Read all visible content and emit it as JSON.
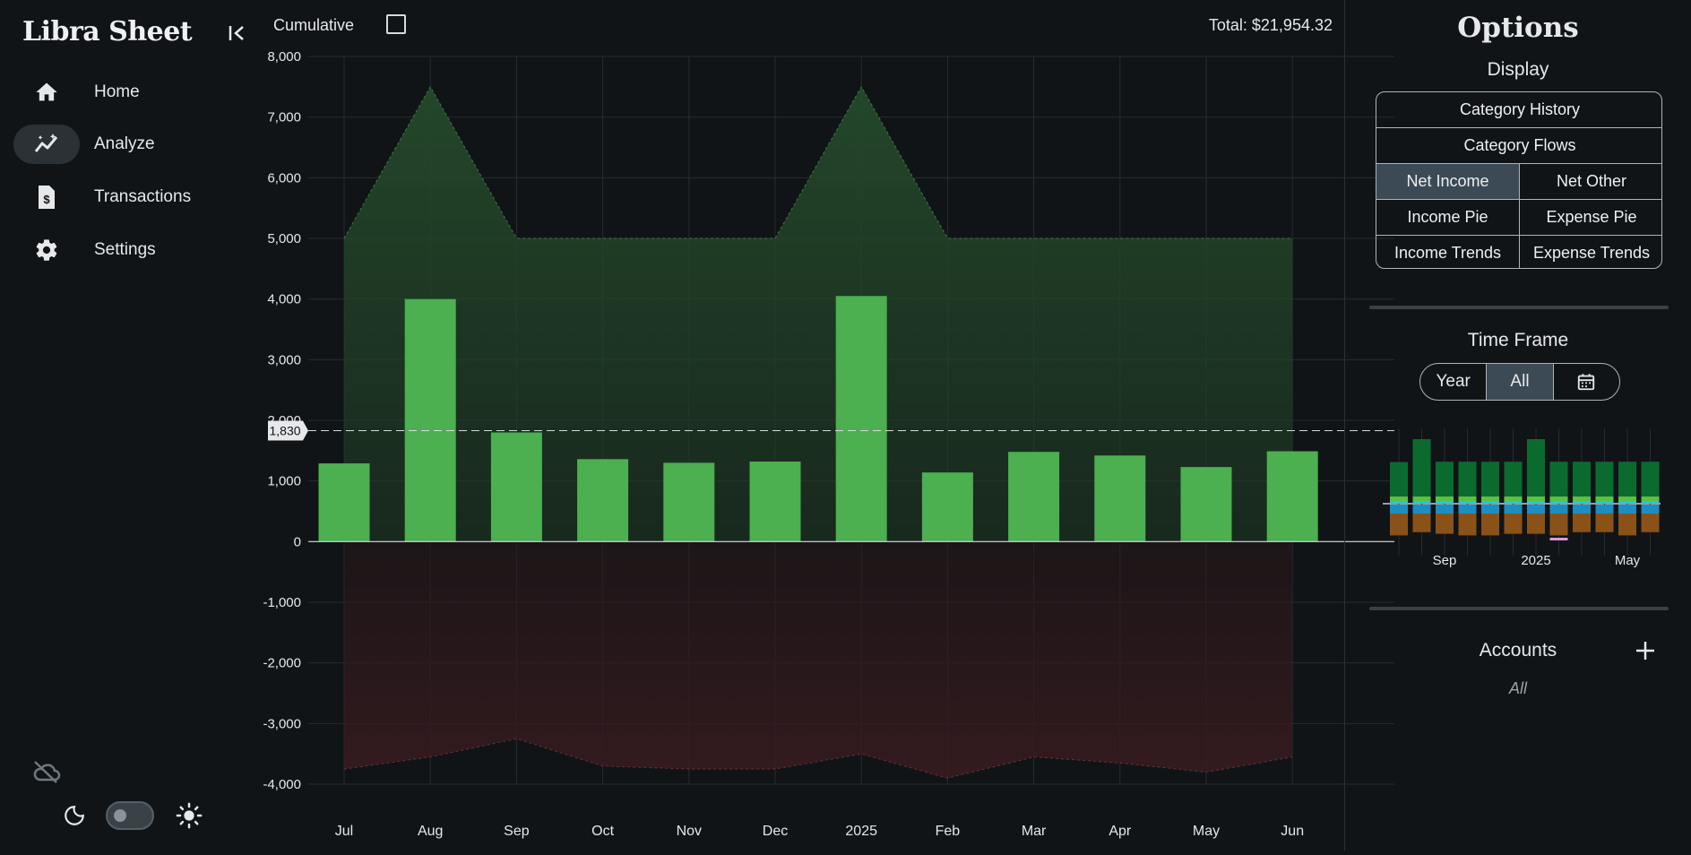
{
  "app": {
    "title": "Libra Sheet"
  },
  "nav": {
    "items": [
      {
        "label": "Home",
        "icon": "home-icon",
        "active": false
      },
      {
        "label": "Analyze",
        "icon": "analyze-icon",
        "active": true
      },
      {
        "label": "Transactions",
        "icon": "receipt-icon",
        "active": false
      },
      {
        "label": "Settings",
        "icon": "gear-icon",
        "active": false
      }
    ]
  },
  "toolbar": {
    "cumulative_label": "Cumulative",
    "cumulative_checked": false,
    "total": "Total: $21,954.32"
  },
  "chart_data": {
    "type": "bar",
    "categories": [
      "Jul",
      "Aug",
      "Sep",
      "Oct",
      "Nov",
      "Dec",
      "2025",
      "Feb",
      "Mar",
      "Apr",
      "May",
      "Jun"
    ],
    "series": [
      {
        "values": [
          1290,
          4000,
          1800,
          1360,
          1300,
          1320,
          4050,
          1140,
          1480,
          1420,
          1230,
          1490
        ]
      }
    ],
    "area_upper": [
      5000,
      7500,
      5000,
      5000,
      5000,
      5000,
      7500,
      5000,
      5000,
      5000,
      5000,
      5000
    ],
    "area_lower": [
      -3750,
      -3550,
      -3250,
      -3700,
      -3750,
      -3750,
      -3500,
      -3900,
      -3550,
      -3650,
      -3800,
      -3550
    ],
    "average": 1830,
    "average_label": "1,830",
    "ylim": [
      -4000,
      8000
    ],
    "yticks": [
      -4000,
      -3000,
      -2000,
      -1000,
      0,
      1000,
      2000,
      3000,
      4000,
      5000,
      6000,
      7000,
      8000
    ],
    "ytick_labels": [
      "-4,000",
      "-3,000",
      "-2,000",
      "-1,000",
      "0",
      "1,000",
      "2,000",
      "3,000",
      "4,000",
      "5,000",
      "6,000",
      "7,000",
      "8,000"
    ],
    "grid": true,
    "bar_color": "#4caf50",
    "upper_fill": "#1f3a24",
    "lower_fill": "#2a1719"
  },
  "options": {
    "title": "Options",
    "display_title": "Display",
    "display_buttons": {
      "category_history": "Category History",
      "category_flows": "Category Flows",
      "net_income": "Net Income",
      "net_other": "Net Other",
      "income_pie": "Income Pie",
      "expense_pie": "Expense Pie",
      "income_trends": "Income Trends",
      "expense_trends": "Expense Trends",
      "selected": "Net Income"
    },
    "time_frame_title": "Time Frame",
    "time_frame_buttons": {
      "year": "Year",
      "all": "All",
      "selected": "All"
    },
    "mini_chart": {
      "x_labels": [
        "Sep",
        "2025",
        "May"
      ],
      "income": [
        1290,
        2000,
        1300,
        1300,
        1300,
        1300,
        2000,
        1300,
        1300,
        1300,
        1300,
        1300
      ],
      "expense": [
        900,
        800,
        850,
        900,
        900,
        850,
        850,
        900,
        800,
        800,
        900,
        800
      ]
    },
    "accounts_title": "Accounts",
    "accounts_value": "All"
  }
}
